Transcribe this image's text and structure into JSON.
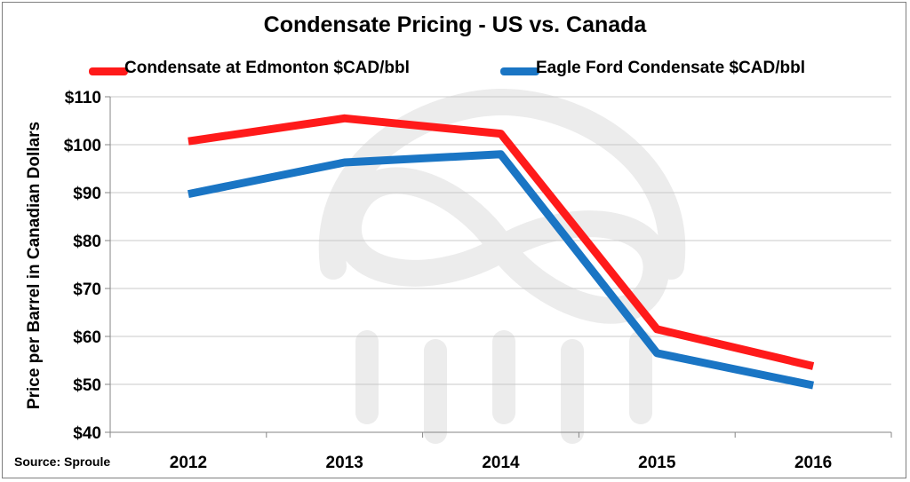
{
  "chart_data": {
    "type": "line",
    "title": "Condensate Pricing - US vs. Canada",
    "xlabel": "",
    "ylabel": "Price per Barrel in Canadian Dollars",
    "categories": [
      "2012",
      "2013",
      "2014",
      "2015",
      "2016"
    ],
    "ylim": [
      40,
      110
    ],
    "yticks": [
      40,
      50,
      60,
      70,
      80,
      90,
      100,
      110
    ],
    "ytick_labels": [
      "$40",
      "$50",
      "$60",
      "$70",
      "$80",
      "$90",
      "$100",
      "$110"
    ],
    "grid": true,
    "legend_position": "top",
    "series": [
      {
        "name": "Condensate at Edmonton $CAD/bbl",
        "color": "#ff1a1a",
        "values": [
          100.7,
          105.5,
          102.3,
          61.5,
          53.8
        ]
      },
      {
        "name": "Eagle Ford Condensate $CAD/bbl",
        "color": "#1a75c4",
        "values": [
          89.7,
          96.3,
          98.0,
          56.5,
          49.8
        ]
      }
    ],
    "source": "Source: Sproule"
  },
  "colors": {
    "grid": "#c8c8c8",
    "axis": "#868686",
    "watermark": "#ececec"
  },
  "watermark_icon": "infinity-logo-watermark"
}
